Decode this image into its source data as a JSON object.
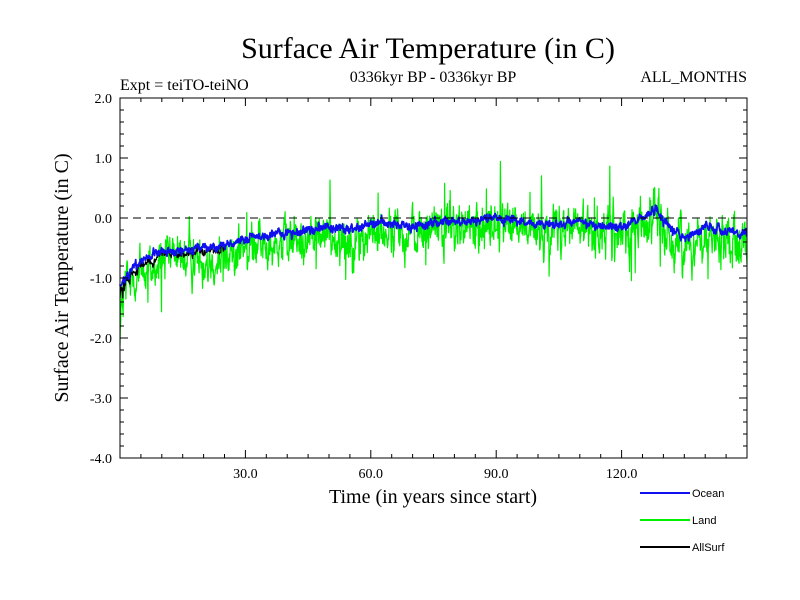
{
  "chart_data": {
    "type": "line",
    "title": "Surface Air Temperature (in C)",
    "subtitle_left": "Expt = teiTO-teiNO",
    "subtitle_center": "0336kyr BP - 0336kyr BP",
    "subtitle_right": "ALL_MONTHS",
    "xlabel": "Time (in years since start)",
    "ylabel": "Surface Air Temperature (in C)",
    "xlim": [
      0,
      150
    ],
    "ylim": [
      -4.0,
      2.0
    ],
    "x_ticks": [
      30,
      60,
      90,
      120
    ],
    "x_tick_labels": [
      "30.0",
      "60.0",
      "90.0",
      "120.0"
    ],
    "y_ticks": [
      -4,
      -3,
      -2,
      -1,
      0,
      1,
      2
    ],
    "y_tick_labels": [
      "-4.0",
      "-3.0",
      "-2.0",
      "-1.0",
      "0.0",
      "1.0",
      "2.0"
    ],
    "reference_line": {
      "y": 0.0,
      "style": "dashed"
    },
    "samples_per_year": 12,
    "series": [
      {
        "name": "Land",
        "color": "#00ee00",
        "x_start": 0,
        "x_end": 150,
        "anchor_x": [
          0,
          1,
          2,
          3,
          5,
          8,
          10,
          15,
          20,
          25,
          30,
          35,
          40,
          45,
          50,
          55,
          60,
          65,
          70,
          75,
          80,
          85,
          90,
          95,
          100,
          105,
          110,
          115,
          120,
          125,
          128,
          130,
          135,
          140,
          145,
          150
        ],
        "anchor_mean": [
          -1.6,
          -1.3,
          -1.15,
          -1.0,
          -0.9,
          -0.8,
          -0.7,
          -0.7,
          -0.65,
          -0.6,
          -0.55,
          -0.45,
          -0.4,
          -0.35,
          -0.3,
          -0.35,
          -0.3,
          -0.25,
          -0.25,
          -0.2,
          -0.15,
          -0.15,
          -0.1,
          -0.15,
          -0.2,
          -0.15,
          -0.2,
          -0.2,
          -0.25,
          -0.1,
          0.05,
          -0.3,
          -0.45,
          -0.3,
          -0.35,
          -0.4
        ],
        "anchor_spread": [
          0.85,
          0.75,
          0.7,
          0.65,
          0.6,
          0.55,
          0.5,
          0.5,
          0.5,
          0.5,
          0.5,
          0.5,
          0.5,
          0.5,
          0.5,
          0.55,
          0.55,
          0.5,
          0.5,
          0.5,
          0.55,
          0.55,
          0.55,
          0.55,
          0.5,
          0.5,
          0.55,
          0.55,
          0.55,
          0.55,
          0.6,
          0.55,
          0.55,
          0.55,
          0.55,
          0.55
        ]
      },
      {
        "name": "Ocean",
        "color": "#1010ee",
        "x_start": 0,
        "x_end": 150,
        "anchor_x": [
          0,
          1,
          2,
          3,
          5,
          8,
          10,
          15,
          20,
          25,
          30,
          35,
          40,
          45,
          50,
          55,
          60,
          65,
          70,
          75,
          80,
          85,
          90,
          95,
          100,
          105,
          110,
          115,
          120,
          125,
          128,
          130,
          135,
          140,
          145,
          150
        ],
        "anchor_mean": [
          -1.15,
          -1.05,
          -0.95,
          -0.85,
          -0.7,
          -0.6,
          -0.55,
          -0.55,
          -0.5,
          -0.45,
          -0.35,
          -0.3,
          -0.25,
          -0.2,
          -0.15,
          -0.2,
          -0.1,
          -0.1,
          -0.15,
          -0.1,
          -0.05,
          -0.05,
          0.0,
          -0.05,
          -0.1,
          -0.1,
          -0.05,
          -0.15,
          -0.15,
          0.0,
          0.15,
          -0.05,
          -0.35,
          -0.15,
          -0.2,
          -0.3
        ],
        "anchor_spread": [
          0.1,
          0.1,
          0.1,
          0.1,
          0.1,
          0.1,
          0.1,
          0.1,
          0.1,
          0.1,
          0.1,
          0.1,
          0.1,
          0.1,
          0.1,
          0.1,
          0.1,
          0.1,
          0.1,
          0.1,
          0.1,
          0.1,
          0.1,
          0.1,
          0.1,
          0.1,
          0.1,
          0.1,
          0.1,
          0.1,
          0.1,
          0.1,
          0.1,
          0.1,
          0.1,
          0.1
        ]
      },
      {
        "name": "AllSurf",
        "color": "#000000",
        "x_start": 0,
        "x_end": 25,
        "anchor_x": [
          0,
          1,
          2,
          3,
          5,
          8,
          10,
          15,
          20,
          25
        ],
        "anchor_mean": [
          -1.3,
          -1.15,
          -1.05,
          -0.95,
          -0.8,
          -0.7,
          -0.62,
          -0.6,
          -0.55,
          -0.5
        ],
        "anchor_spread": [
          0.25,
          0.2,
          0.15,
          0.12,
          0.1,
          0.1,
          0.1,
          0.1,
          0.1,
          0.1
        ]
      }
    ],
    "legend": {
      "placement": "bottom-right",
      "entries": [
        {
          "label": "Ocean",
          "color": "#1010ee"
        },
        {
          "label": "Land",
          "color": "#00ee00"
        },
        {
          "label": "AllSurf",
          "color": "#000000"
        }
      ]
    }
  }
}
